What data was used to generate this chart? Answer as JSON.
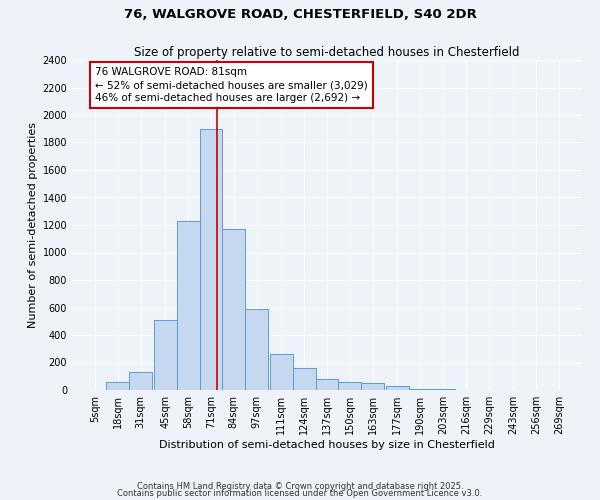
{
  "title_line1": "76, WALGROVE ROAD, CHESTERFIELD, S40 2DR",
  "title_line2": "Size of property relative to semi-detached houses in Chesterfield",
  "xlabel": "Distribution of semi-detached houses by size in Chesterfield",
  "ylabel": "Number of semi-detached properties",
  "bin_labels": [
    "5sqm",
    "18sqm",
    "31sqm",
    "45sqm",
    "58sqm",
    "71sqm",
    "84sqm",
    "97sqm",
    "111sqm",
    "124sqm",
    "137sqm",
    "150sqm",
    "163sqm",
    "177sqm",
    "190sqm",
    "203sqm",
    "216sqm",
    "229sqm",
    "243sqm",
    "256sqm",
    "269sqm"
  ],
  "bin_edges": [
    5,
    18,
    31,
    45,
    58,
    71,
    84,
    97,
    111,
    124,
    137,
    150,
    163,
    177,
    190,
    203,
    216,
    229,
    243,
    256,
    269
  ],
  "bar_values": [
    0,
    60,
    130,
    510,
    1230,
    1900,
    1170,
    590,
    260,
    160,
    80,
    60,
    50,
    30,
    10,
    5,
    3,
    2,
    1,
    0
  ],
  "bar_color": "#c5d8f0",
  "bar_edgecolor": "#5b9bd5",
  "property_size": 81,
  "annotation_title": "76 WALGROVE ROAD: 81sqm",
  "annotation_line2": "← 52% of semi-detached houses are smaller (3,029)",
  "annotation_line3": "46% of semi-detached houses are larger (2,692) →",
  "vline_color": "#cc0000",
  "box_edgecolor": "#cc0000",
  "ylim": [
    0,
    2400
  ],
  "yticks": [
    0,
    200,
    400,
    600,
    800,
    1000,
    1200,
    1400,
    1600,
    1800,
    2000,
    2200,
    2400
  ],
  "footnote_line1": "Contains HM Land Registry data © Crown copyright and database right 2025.",
  "footnote_line2": "Contains public sector information licensed under the Open Government Licence v3.0.",
  "background_color": "#eef2f9",
  "grid_color": "#ffffff",
  "title_fontsize": 9.5,
  "subtitle_fontsize": 8.5,
  "axis_label_fontsize": 8,
  "tick_fontsize": 7,
  "annotation_fontsize": 7.5,
  "footnote_fontsize": 6
}
